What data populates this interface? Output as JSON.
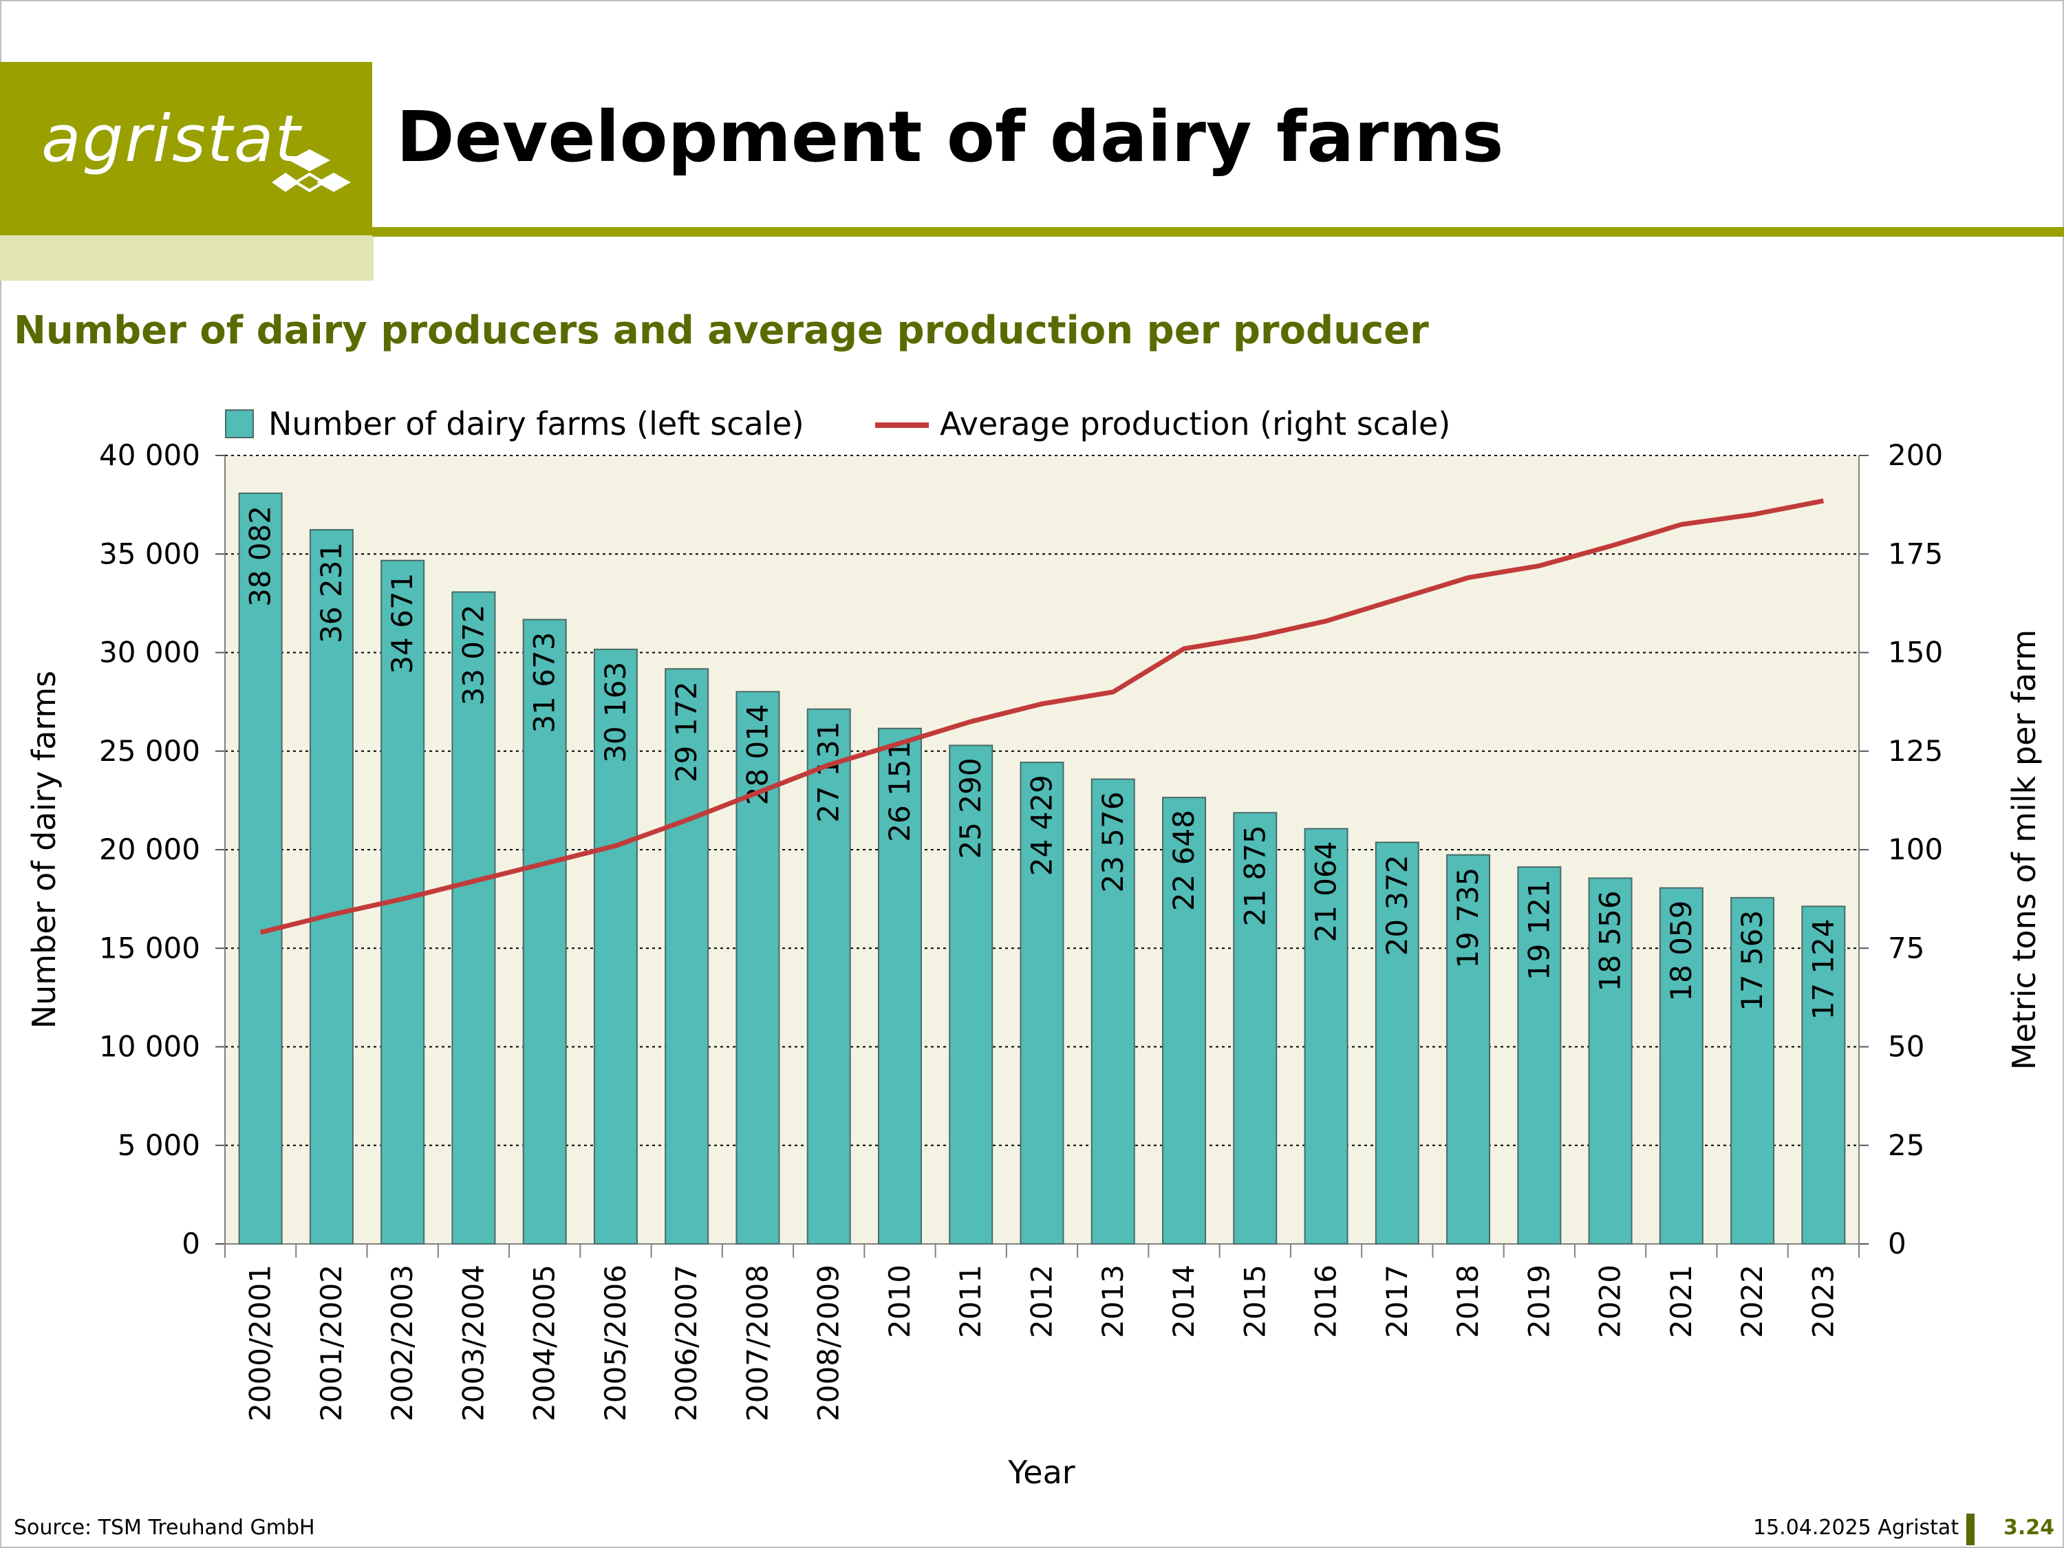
{
  "slide": {
    "logo_text": "agristat",
    "title": "Development of dairy farms",
    "subtitle": "Number of dairy producers and average production per producer"
  },
  "footer": {
    "source": "Source: TSM Treuhand GmbH",
    "date": "15.04.2025 Agristat",
    "page": "3.24"
  },
  "colors": {
    "brand_green": "#99a000",
    "brand_green_light": "#e1e5b4",
    "subtitle_green": "#5b6a00",
    "plot_background": "#f4f3e3",
    "bar_fill": "#52bcb6",
    "bar_stroke": "#4a6a68",
    "line_color": "#c23b3b"
  },
  "chart_data": {
    "type": "bar",
    "title": "",
    "xlabel": "Year",
    "ylabel": "Number of dairy farms",
    "y2label": "Metric tons of milk per farm",
    "ylim": [
      0,
      40000
    ],
    "y2lim": [
      0,
      200
    ],
    "yticks": [
      "0",
      "5 000",
      "10 000",
      "15 000",
      "20 000",
      "25 000",
      "30 000",
      "35 000",
      "40 000"
    ],
    "y2ticks": [
      "0",
      "25",
      "50",
      "75",
      "100",
      "125",
      "150",
      "175",
      "200"
    ],
    "grid": "horizontal dotted",
    "legend_position": "top",
    "categories": [
      "2000/2001",
      "2001/2002",
      "2002/2003",
      "2003/2004",
      "2004/2005",
      "2005/2006",
      "2006/2007",
      "2007/2008",
      "2008/2009",
      "2010",
      "2011",
      "2012",
      "2013",
      "2014",
      "2015",
      "2016",
      "2017",
      "2018",
      "2019",
      "2020",
      "2021",
      "2022",
      "2023"
    ],
    "series": [
      {
        "name": "Number of dairy farms (left scale)",
        "type": "bar",
        "axis": "left",
        "values": [
          38082,
          36231,
          34671,
          33072,
          31673,
          30163,
          29172,
          28014,
          27131,
          26151,
          25290,
          24429,
          23576,
          22648,
          21875,
          21064,
          20372,
          19735,
          19121,
          18556,
          18059,
          17563,
          17124
        ],
        "labels": [
          "38 082",
          "36 231",
          "34 671",
          "33 072",
          "31 673",
          "30 163",
          "29 172",
          "28 014",
          "27 131",
          "26 151",
          "25 290",
          "24 429",
          "23 576",
          "22 648",
          "21 875",
          "21 064",
          "20 372",
          "19 735",
          "19 121",
          "18 556",
          "18 059",
          "17 563",
          "17 124"
        ]
      },
      {
        "name": "Average production (right scale)",
        "type": "line",
        "axis": "right",
        "values": [
          79,
          83.5,
          87.5,
          92,
          96.5,
          101,
          107.5,
          114.5,
          121.5,
          127,
          132.5,
          137,
          140,
          151,
          154,
          158,
          163.5,
          169,
          172,
          177,
          182.5,
          185,
          188.5
        ]
      }
    ]
  }
}
